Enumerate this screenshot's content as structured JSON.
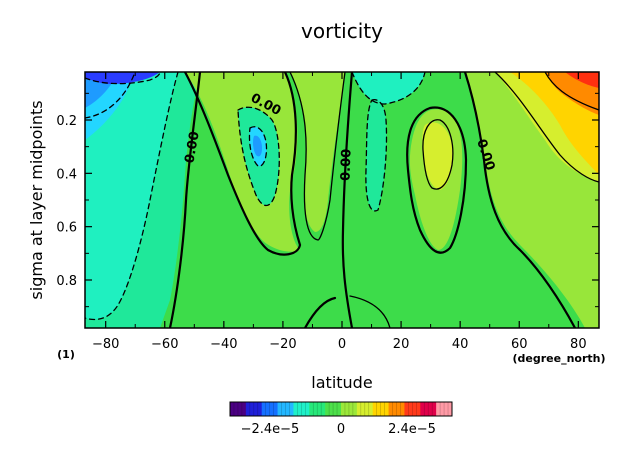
{
  "chart_data": {
    "type": "heatmap",
    "title": "vorticity",
    "xlabel": "latitude",
    "ylabel": "sigma at layer midpoints",
    "x_units": "(degree_north)",
    "y_units": "(1)",
    "xlim": [
      -87,
      87
    ],
    "ylim": [
      0.98,
      0.02
    ],
    "x_ticks": [
      -80,
      -60,
      -40,
      -20,
      0,
      20,
      40,
      60,
      80
    ],
    "x_tick_labels": [
      "−80",
      "−60",
      "−40",
      "−20",
      "0",
      "20",
      "40",
      "60",
      "80"
    ],
    "y_ticks": [
      0.2,
      0.4,
      0.6,
      0.8
    ],
    "y_tick_labels": [
      "0.2",
      "0.4",
      "0.6",
      "0.8"
    ],
    "contour_labels": [
      "0.00",
      "0.00",
      "0.00",
      "0.00"
    ],
    "colorbar": {
      "labels": [
        "−2.4e−5",
        "0",
        "2.4e−5"
      ],
      "colors": [
        "#4b0082",
        "#1f1fd8",
        "#1570ff",
        "#23b7ff",
        "#1ff0c8",
        "#27e87a",
        "#4de04a",
        "#9be83a",
        "#d6ee2e",
        "#ffd400",
        "#ff8a00",
        "#ff3a1a",
        "#e0004a",
        "#ff9aa6"
      ]
    },
    "palette": {
      "deep_blue": "#2a3cff",
      "blue": "#1e9bff",
      "cyan": "#23d6ff",
      "teal": "#1ff0c0",
      "aqua_green": "#1fe89a",
      "green": "#3ddc4a",
      "lime": "#98e63a",
      "yellow": "#ffd400",
      "orange": "#ff8a00",
      "red": "#ff3010"
    }
  }
}
